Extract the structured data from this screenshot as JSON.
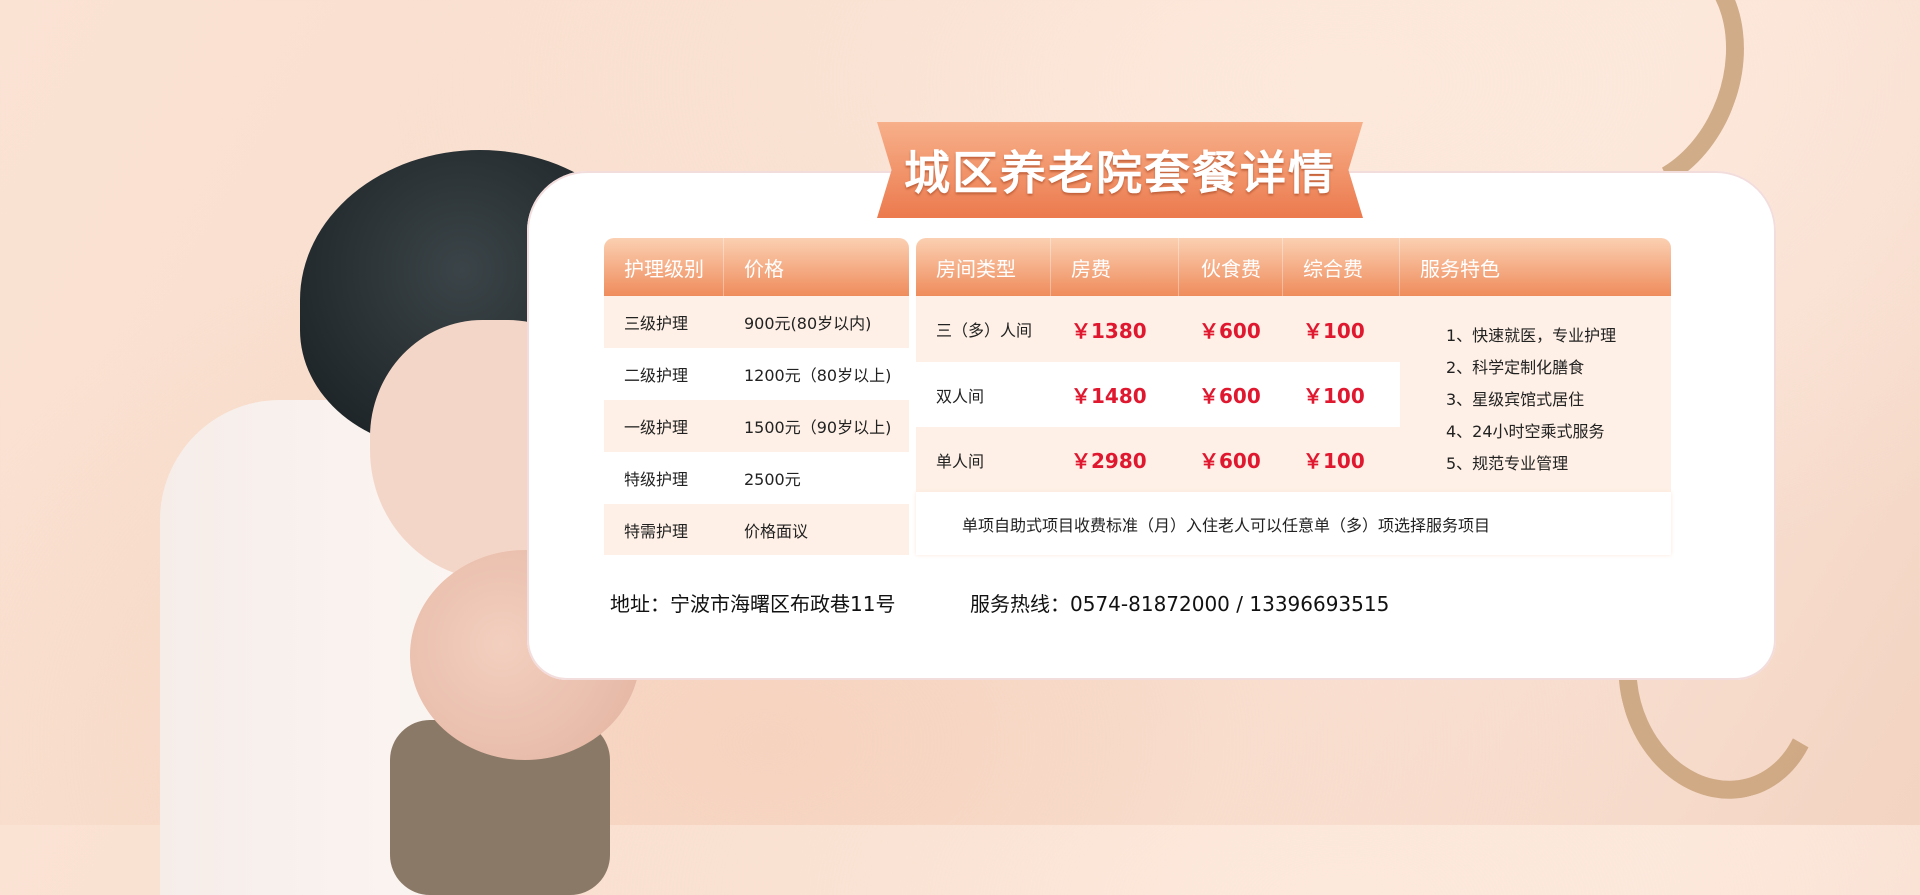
{
  "title": "城区养老院套餐详情",
  "care_table": {
    "headers": [
      "护理级别",
      "价格"
    ],
    "rows": [
      [
        "三级护理",
        "900元(80岁以内)"
      ],
      [
        "二级护理",
        "1200元（80岁以上)"
      ],
      [
        "一级护理",
        "1500元（90岁以上)"
      ],
      [
        "特级护理",
        "2500元"
      ],
      [
        "特需护理",
        "价格面议"
      ]
    ]
  },
  "room_table": {
    "headers": [
      "房间类型",
      "房费",
      "伙食费",
      "综合费",
      "服务特色"
    ],
    "rows": [
      [
        "三（多）人间",
        "￥1380",
        "￥600",
        "￥100"
      ],
      [
        "双人间",
        "￥1480",
        "￥600",
        "￥100"
      ],
      [
        "单人间",
        "￥2980",
        "￥600",
        "￥100"
      ]
    ],
    "features": [
      "1、快速就医，专业护理",
      "2、科学定制化膳食",
      "3、星级宾馆式居住",
      "4、24小时空乘式服务",
      "5、规范专业管理"
    ],
    "note": "单项自助式项目收费标准（月）入住老人可以任意单（多）项选择服务项目"
  },
  "address": "地址：宁波市海曙区布政巷11号",
  "hotline": "服务热线：0574-81872000 / 13396693515",
  "colors": {
    "accent": "#ef8c5c",
    "price": "#e0182f",
    "row_peach": "#fef0e6"
  }
}
